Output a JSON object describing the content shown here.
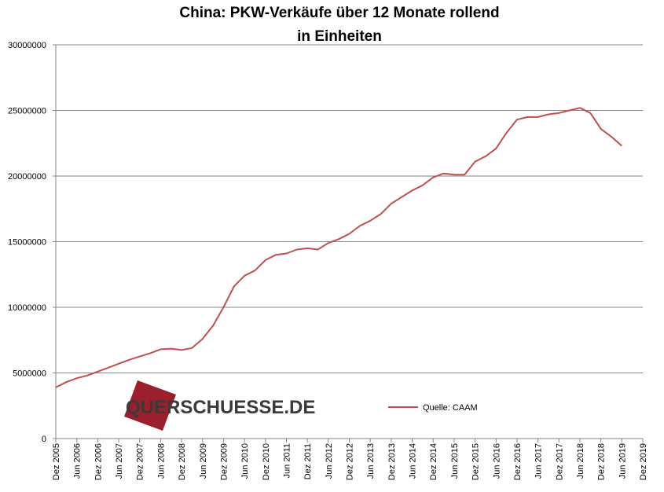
{
  "chart_data": {
    "type": "line",
    "title": "China: PKW-Verkäufe  über 12 Monate rollend",
    "subtitle": "in Einheiten",
    "watermark": "QUERSCHUESSE.DE",
    "categories": [
      "Dez 2005",
      null,
      "Jun 2006",
      null,
      "Dez 2006",
      null,
      "Jun 2007",
      null,
      "Dez 2007",
      null,
      "Jun 2008",
      null,
      "Dez 2008",
      null,
      "Jun 2009",
      null,
      "Dez 2009",
      null,
      "Jun 2010",
      null,
      "Dez 2010",
      null,
      "Jun 2011",
      null,
      "Dez 2011",
      null,
      "Jun 2012",
      null,
      "Dez 2012",
      null,
      "Jun 2013",
      null,
      "Dez 2013",
      null,
      "Jun 2014",
      null,
      "Dez 2014",
      null,
      "Jun 2015",
      null,
      "Dez 2015",
      null,
      "Jun 2016",
      null,
      "Dez 2016",
      null,
      "Jun 2017",
      null,
      "Dez 2017",
      null,
      "Jun 2018",
      null,
      "Dez 2018",
      null,
      "Jun 2019",
      null,
      "Dez 2019"
    ],
    "series": [
      {
        "name": "Quelle: CAAM",
        "color": "#c0504d",
        "values": [
          3900000,
          4300000,
          4600000,
          4800000,
          5100000,
          5400000,
          5700000,
          6000000,
          6250000,
          6500000,
          6800000,
          6850000,
          6750000,
          6900000,
          7600000,
          8600000,
          10000000,
          11600000,
          12400000,
          12800000,
          13600000,
          14000000,
          14100000,
          14400000,
          14500000,
          14400000,
          14900000,
          15200000,
          15600000,
          16200000,
          16600000,
          17100000,
          17900000,
          18400000,
          18900000,
          19300000,
          19900000,
          20200000,
          20100000,
          20100000,
          21100000,
          21500000,
          22100000,
          23300000,
          24300000,
          24500000,
          24500000,
          24700000,
          24800000,
          25000000,
          25200000,
          24800000,
          23600000,
          23000000,
          22300000,
          null,
          null
        ]
      }
    ],
    "ylim": [
      0,
      30000000
    ],
    "yticks": [
      0,
      5000000,
      10000000,
      15000000,
      20000000,
      25000000,
      30000000
    ],
    "grid": true
  }
}
